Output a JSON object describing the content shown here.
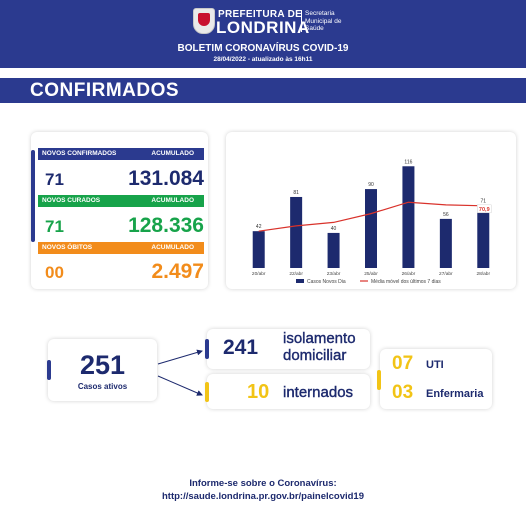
{
  "header": {
    "org_line1": "PREFEITURA DE",
    "org_line2": "LONDRINA",
    "secretaria": [
      "Secretaria",
      "Municipal de",
      "Saúde"
    ],
    "bulletin": "BOLETIM CORONAVÍRUS COVID-19",
    "date": "28/04/2022 - atualizado às 16h11"
  },
  "section_title": "CONFIRMADOS",
  "stats": {
    "confirmed": {
      "label": "NOVOS CONFIRMADOS",
      "acc_label": "ACUMULADO",
      "new": "71",
      "total": "131.084",
      "color": "#2b3a8f"
    },
    "cured": {
      "label": "NOVOS CURADOS",
      "acc_label": "ACUMULADO",
      "new": "71",
      "total": "128.336",
      "color": "#17a34a"
    },
    "deaths": {
      "label": "NOVOS ÓBITOS",
      "acc_label": "ACUMULADO",
      "new": "00",
      "total": "2.497",
      "color": "#f28c1b"
    }
  },
  "chart_data": {
    "type": "bar",
    "categories": [
      "20/abr",
      "22/abr",
      "23/abr",
      "25/abr",
      "26/abr",
      "27/abr",
      "28/abr"
    ],
    "series": [
      {
        "name": "Casos Novos Dia",
        "type": "bar",
        "values": [
          42,
          81,
          40,
          90,
          116,
          56,
          71
        ],
        "color": "#1d2a6e"
      },
      {
        "name": "Média móvel dos últimos 7 dias",
        "type": "line",
        "values": [
          42,
          48,
          52,
          62,
          75,
          72,
          70.9
        ],
        "color": "#d9322b"
      }
    ],
    "last_line_label": "70,9",
    "ylim": [
      0,
      130
    ]
  },
  "active": {
    "value": "251",
    "label": "Casos ativos"
  },
  "isolation": {
    "value": "241",
    "label_line1": "isolamento",
    "label_line2": "domiciliar"
  },
  "hospitalized": {
    "value": "10",
    "label": "internados"
  },
  "icu": {
    "value": "07",
    "label": "UTI"
  },
  "ward": {
    "value": "03",
    "label": "Enfermaria"
  },
  "colors": {
    "accent_blue": "#2b3a8f",
    "accent_yellow": "#f2c416",
    "text_blue": "#1d2a6e"
  },
  "footer": {
    "line1": "Informe-se sobre o Coronavírus:",
    "line2": "http://saude.londrina.pr.gov.br/painelcovid19"
  }
}
